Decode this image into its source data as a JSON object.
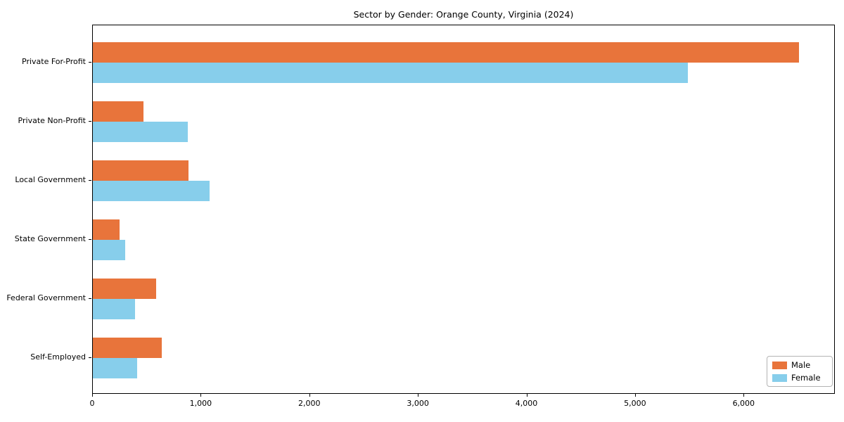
{
  "chart_data": {
    "type": "bar",
    "orientation": "horizontal",
    "title": "Sector by Gender: Orange County, Virginia (2024)",
    "categories": [
      "Private For-Profit",
      "Private Non-Profit",
      "Local Government",
      "State Government",
      "Federal Government",
      "Self-Employed"
    ],
    "series": [
      {
        "name": "Male",
        "color": "#E8743B",
        "values": [
          6500,
          465,
          880,
          245,
          585,
          635
        ]
      },
      {
        "name": "Female",
        "color": "#87CEEB",
        "values": [
          5480,
          875,
          1075,
          300,
          390,
          410
        ]
      }
    ],
    "xlim": [
      0,
      6840
    ],
    "x_ticks": [
      0,
      1000,
      2000,
      3000,
      4000,
      5000,
      6000
    ],
    "x_tick_labels": [
      "0",
      "1,000",
      "2,000",
      "3,000",
      "4,000",
      "5,000",
      "6,000"
    ],
    "legend_position": "lower right",
    "grid": false,
    "xlabel": "",
    "ylabel": ""
  }
}
